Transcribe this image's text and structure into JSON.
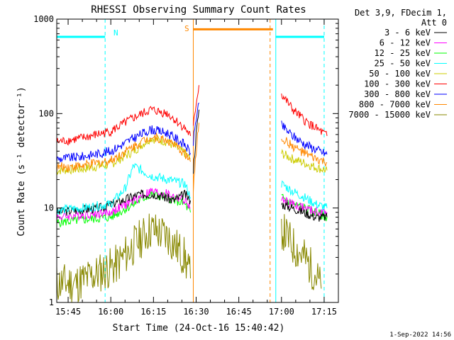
{
  "chart_data": {
    "type": "line",
    "title": "RHESSI Observing Summary Count Rates",
    "xlabel": "Start Time (24-Oct-16 15:40:42)",
    "ylabel": "Count Rate (s⁻¹ detector⁻¹)",
    "yscale": "log",
    "ylim": [
      1,
      1000
    ],
    "xlim": [
      "15:41",
      "17:20"
    ],
    "yticks": [
      {
        "value": 1,
        "label": "1"
      },
      {
        "value": 10,
        "label": "10"
      },
      {
        "value": 100,
        "label": "100"
      },
      {
        "value": 1000,
        "label": "1000"
      }
    ],
    "xticks": [
      {
        "time": "15:45",
        "label": "15:45"
      },
      {
        "time": "16:00",
        "label": "16:00"
      },
      {
        "time": "16:15",
        "label": "16:15"
      },
      {
        "time": "16:30",
        "label": "16:30"
      },
      {
        "time": "16:45",
        "label": "16:45"
      },
      {
        "time": "17:00",
        "label": "17:00"
      },
      {
        "time": "17:15",
        "label": "17:15"
      }
    ],
    "legend_header": [
      "Det 3,9, FDecim 1,",
      "Att 0"
    ],
    "legend_position": "right",
    "series": [
      {
        "name": "3 - 6 keV",
        "color": "#000000",
        "segments": [
          {
            "x": [
              "15:41",
              "15:48",
              "15:56",
              "16:04",
              "16:10",
              "16:16",
              "16:22",
              "16:26",
              "16:28"
            ],
            "y": [
              9,
              9.5,
              10,
              12,
              14,
              14,
              12,
              14,
              12
            ]
          },
          {
            "x": [
              "16:29",
              "16:30",
              "16:31"
            ],
            "y": [
              25,
              60,
              110
            ]
          },
          {
            "x": [
              "17:00",
              "17:04",
              "17:08",
              "17:12",
              "17:16"
            ],
            "y": [
              11,
              10,
              9,
              8,
              8
            ]
          }
        ]
      },
      {
        "name": "6 - 12 keV",
        "color": "#ff00ff",
        "segments": [
          {
            "x": [
              "15:41",
              "15:50",
              "16:00",
              "16:08",
              "16:14",
              "16:20",
              "16:26",
              "16:28"
            ],
            "y": [
              8,
              8.5,
              9,
              12,
              15,
              14,
              12,
              10
            ]
          },
          {
            "x": [
              "17:00",
              "17:04",
              "17:08",
              "17:12",
              "17:16"
            ],
            "y": [
              12,
              11,
              10,
              9,
              9
            ]
          }
        ]
      },
      {
        "name": "12 - 25 keV",
        "color": "#00ff00",
        "segments": [
          {
            "x": [
              "15:41",
              "15:50",
              "16:00",
              "16:08",
              "16:14",
              "16:20",
              "16:26",
              "16:28"
            ],
            "y": [
              7,
              7.5,
              8,
              11,
              14,
              13,
              11,
              9
            ]
          },
          {
            "x": [
              "17:00",
              "17:04",
              "17:08",
              "17:12",
              "17:16"
            ],
            "y": [
              13,
              11,
              10,
              9,
              8
            ]
          }
        ]
      },
      {
        "name": "25 - 50 keV",
        "color": "#00ffff",
        "segments": [
          {
            "x": [
              "15:41",
              "15:50",
              "16:00",
              "16:05",
              "16:08",
              "16:14",
              "16:20",
              "16:26",
              "16:28"
            ],
            "y": [
              9.5,
              10,
              11,
              16,
              28,
              22,
              20,
              18,
              13
            ]
          },
          {
            "x": [
              "17:00",
              "17:04",
              "17:08",
              "17:12",
              "17:16"
            ],
            "y": [
              18,
              15,
              13,
              11,
              10
            ]
          }
        ]
      },
      {
        "name": "50 - 100 keV",
        "color": "#cccc00",
        "segments": [
          {
            "x": [
              "15:41",
              "15:50",
              "16:00",
              "16:08",
              "16:14",
              "16:20",
              "16:26",
              "16:28"
            ],
            "y": [
              25,
              26,
              29,
              40,
              55,
              50,
              38,
              33
            ]
          },
          {
            "x": [
              "17:00",
              "17:04",
              "17:08",
              "17:12",
              "17:16"
            ],
            "y": [
              38,
              33,
              30,
              27,
              25
            ]
          }
        ]
      },
      {
        "name": "100 - 300 keV",
        "color": "#ff0000",
        "segments": [
          {
            "x": [
              "15:41",
              "15:50",
              "16:00",
              "16:08",
              "16:14",
              "16:20",
              "16:26",
              "16:28"
            ],
            "y": [
              50,
              55,
              65,
              90,
              110,
              100,
              70,
              58
            ]
          },
          {
            "x": [
              "16:29",
              "16:30",
              "16:31"
            ],
            "y": [
              70,
              130,
              200
            ]
          },
          {
            "x": [
              "17:00",
              "17:04",
              "17:08",
              "17:12",
              "17:16"
            ],
            "y": [
              160,
              110,
              85,
              70,
              58
            ]
          }
        ]
      },
      {
        "name": "300 - 800 keV",
        "color": "#0000ff",
        "segments": [
          {
            "x": [
              "15:41",
              "15:50",
              "16:00",
              "16:08",
              "16:14",
              "16:20",
              "16:26",
              "16:28"
            ],
            "y": [
              33,
              35,
              40,
              55,
              68,
              62,
              47,
              38
            ]
          },
          {
            "x": [
              "16:29",
              "16:30",
              "16:31"
            ],
            "y": [
              50,
              90,
              130
            ]
          },
          {
            "x": [
              "17:00",
              "17:04",
              "17:08",
              "17:12",
              "17:16"
            ],
            "y": [
              75,
              58,
              48,
              42,
              37
            ]
          }
        ]
      },
      {
        "name": "800 - 7000 keV",
        "color": "#ff8800",
        "segments": [
          {
            "x": [
              "15:41",
              "15:50",
              "16:00",
              "16:08",
              "16:14",
              "16:20",
              "16:26",
              "16:28"
            ],
            "y": [
              27,
              28,
              32,
              45,
              57,
              52,
              38,
              31
            ]
          },
          {
            "x": [
              "16:29",
              "16:30",
              "16:31"
            ],
            "y": [
              15,
              40,
              80
            ]
          },
          {
            "x": [
              "17:00",
              "17:04",
              "17:08",
              "17:12",
              "17:16"
            ],
            "y": [
              55,
              45,
              38,
              33,
              30
            ]
          }
        ]
      },
      {
        "name": "7000 - 15000 keV",
        "color": "#888800",
        "segments": [
          {
            "x": [
              "15:41",
              "15:48",
              "15:55",
              "16:02",
              "16:08",
              "16:14",
              "16:20",
              "16:26",
              "16:28"
            ],
            "y": [
              1.6,
              1.6,
              2,
              2.5,
              4,
              6,
              5,
              3,
              1.8
            ]
          },
          {
            "x": [
              "17:00",
              "17:04",
              "17:08",
              "17:12",
              "17:14"
            ],
            "y": [
              6,
              4,
              3,
              2,
              1.4
            ]
          }
        ]
      }
    ],
    "annotations": [
      {
        "text": "N",
        "color": "#00ffff"
      },
      {
        "text": "S",
        "color": "#ff8800"
      }
    ],
    "bands": [
      {
        "kind": "night",
        "color": "#00ffff",
        "x": [
          "15:41",
          "15:58"
        ],
        "y": 650
      },
      {
        "kind": "night",
        "color": "#00ffff",
        "x": [
          "16:58",
          "17:15"
        ],
        "y": 650
      },
      {
        "kind": "saa",
        "color": "#ff8800",
        "x": [
          "16:29",
          "16:57"
        ],
        "y": 780
      }
    ],
    "vlines": [
      {
        "x": "15:41",
        "color": "#00ffff",
        "style": "solid"
      },
      {
        "x": "15:58",
        "color": "#00ffff",
        "style": "dashed"
      },
      {
        "x": "16:29",
        "color": "#ff8800",
        "style": "solid"
      },
      {
        "x": "16:56",
        "color": "#ff8800",
        "style": "dashed"
      },
      {
        "x": "16:58",
        "color": "#00ffff",
        "style": "solid"
      },
      {
        "x": "17:15",
        "color": "#00ffff",
        "style": "dashed"
      }
    ]
  },
  "footer_timestamp": "1-Sep-2022 14:56"
}
